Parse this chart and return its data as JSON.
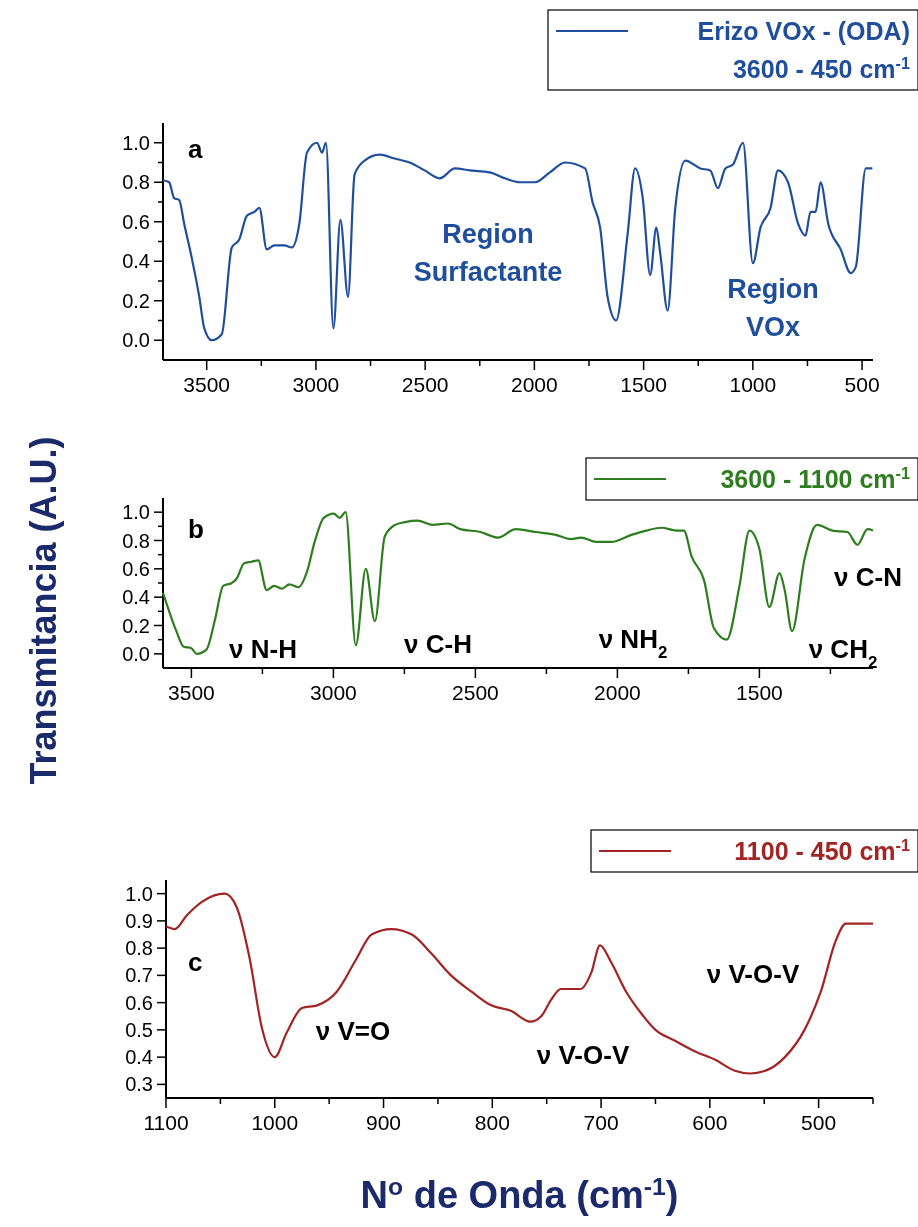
{
  "chart_data": [
    {
      "type": "line",
      "legend": "top right",
      "xlim": [
        3700,
        450
      ],
      "ylim": [
        -0.1,
        1.1
      ],
      "xticks": [
        3500,
        {
          "value": 3250,
          "label": null
        },
        3000,
        {
          "value": 2750,
          "label": null
        },
        2500,
        {
          "value": 2250,
          "label": null
        },
        2000,
        {
          "value": 1750,
          "label": null
        },
        1500,
        {
          "value": 1250,
          "label": null
        },
        1000,
        {
          "value": 750,
          "label": null
        },
        500
      ],
      "yticks": [
        {
          "value": 0.0,
          "label": "0.0"
        },
        {
          "value": 0.1,
          "label": null
        },
        0.2,
        {
          "value": 0.3,
          "label": null
        },
        0.4,
        {
          "value": 0.5,
          "label": null
        },
        0.6,
        {
          "value": 0.7,
          "label": null
        },
        0.8,
        {
          "value": 0.9,
          "label": null
        },
        {
          "value": 1.0,
          "label": "1.0"
        }
      ],
      "annotations": [
        "a",
        "Region\nSurfactante",
        "Region\nVOx"
      ],
      "series": [
        {
          "name": "Erizo VOx - (ODA)\n3600 - 450 cm$^{-1}$",
          "color": "#1f4e9c",
          "x": [
            3700,
            3672,
            3649,
            3626,
            3603,
            3569,
            3534,
            3511,
            3477,
            3431,
            3385,
            3351,
            3316,
            3282,
            3259,
            3225,
            3190,
            3144,
            3110,
            3076,
            3041,
            2995,
            2972,
            2954,
            2920,
            2888,
            2853,
            2823,
            2777,
            2709,
            2640,
            2571,
            2502,
            2433,
            2364,
            2296,
            2204,
            2135,
            2066,
            1997,
            1929,
            1860,
            1768,
            1734,
            1699,
            1665,
            1626,
            1573,
            1539,
            1504,
            1470,
            1442,
            1424,
            1390,
            1355,
            1309,
            1240,
            1195,
            1160,
            1126,
            1091,
            1045,
            1000,
            965,
            919,
            885,
            839,
            793,
            759,
            736,
            713,
            690,
            655,
            598,
            552,
            529,
            483,
            453
          ],
          "values": [
            0.81,
            0.8,
            0.72,
            0.71,
            0.59,
            0.42,
            0.22,
            0.06,
            0.0,
            0.03,
            0.47,
            0.51,
            0.63,
            0.65,
            0.67,
            0.46,
            0.48,
            0.48,
            0.47,
            0.59,
            0.95,
            1.0,
            0.95,
            1.0,
            0.06,
            0.61,
            0.22,
            0.84,
            0.91,
            0.94,
            0.92,
            0.9,
            0.86,
            0.82,
            0.87,
            0.86,
            0.85,
            0.82,
            0.8,
            0.8,
            0.85,
            0.9,
            0.87,
            0.7,
            0.57,
            0.22,
            0.1,
            0.54,
            0.87,
            0.72,
            0.33,
            0.57,
            0.44,
            0.15,
            0.67,
            0.91,
            0.87,
            0.86,
            0.77,
            0.87,
            0.89,
            1.0,
            0.39,
            0.57,
            0.67,
            0.86,
            0.8,
            0.59,
            0.53,
            0.65,
            0.65,
            0.8,
            0.59,
            0.46,
            0.34,
            0.37,
            0.87,
            0.87
          ]
        }
      ]
    },
    {
      "type": "line",
      "legend": "top right",
      "ylabel": "Transmitancia (A.U.)",
      "xlim": [
        3600,
        1100
      ],
      "ylim": [
        -0.1,
        1.1
      ],
      "xticks": [
        3500,
        {
          "value": 3250,
          "label": null
        },
        3000,
        {
          "value": 2750,
          "label": null
        },
        2500,
        {
          "value": 2250,
          "label": null
        },
        2000,
        {
          "value": 1750,
          "label": null
        },
        1500,
        {
          "value": 1250,
          "label": null
        }
      ],
      "yticks": [
        {
          "value": 0.0,
          "label": "0.0"
        },
        {
          "value": 0.1,
          "label": null
        },
        0.2,
        {
          "value": 0.3,
          "label": null
        },
        0.4,
        {
          "value": 0.5,
          "label": null
        },
        0.6,
        {
          "value": 0.7,
          "label": null
        },
        0.8,
        {
          "value": 0.9,
          "label": null
        },
        {
          "value": 1.0,
          "label": "1.0"
        }
      ],
      "annotations": [
        "b",
        "ν N-H",
        "ν C-H",
        "ν NH$_{2}$",
        "ν CH$_{2}$",
        "ν C-N"
      ],
      "series": [
        {
          "name": "3600 - 1100 cm$^{-1}$",
          "color": "#2e7d1f",
          "x": [
            3600,
            3580,
            3553,
            3527,
            3500,
            3482,
            3447,
            3417,
            3388,
            3358,
            3341,
            3314,
            3288,
            3265,
            3235,
            3208,
            3181,
            3155,
            3123,
            3093,
            3066,
            3034,
            2999,
            2978,
            2957,
            2921,
            2886,
            2854,
            2819,
            2783,
            2748,
            2704,
            2650,
            2597,
            2553,
            2482,
            2420,
            2358,
            2288,
            2217,
            2164,
            2128,
            2075,
            2022,
            1951,
            1898,
            1845,
            1792,
            1766,
            1739,
            1695,
            1660,
            1615,
            1571,
            1535,
            1500,
            1465,
            1429,
            1411,
            1385,
            1341,
            1297,
            1243,
            1190,
            1155,
            1119,
            1100
          ],
          "values": [
            0.43,
            0.31,
            0.16,
            0.05,
            0.04,
            0.0,
            0.03,
            0.24,
            0.48,
            0.5,
            0.53,
            0.64,
            0.65,
            0.66,
            0.45,
            0.48,
            0.46,
            0.49,
            0.47,
            0.58,
            0.79,
            0.96,
            0.99,
            0.96,
            1.0,
            0.06,
            0.6,
            0.23,
            0.83,
            0.91,
            0.93,
            0.94,
            0.91,
            0.92,
            0.88,
            0.86,
            0.82,
            0.88,
            0.86,
            0.84,
            0.81,
            0.82,
            0.79,
            0.79,
            0.84,
            0.87,
            0.89,
            0.87,
            0.87,
            0.69,
            0.52,
            0.18,
            0.1,
            0.47,
            0.87,
            0.74,
            0.33,
            0.57,
            0.45,
            0.16,
            0.67,
            0.91,
            0.87,
            0.86,
            0.77,
            0.88,
            0.87
          ]
        }
      ]
    },
    {
      "type": "line",
      "legend": "top right",
      "xlabel": "N$^{o}$ de Onda (cm$^{-1}$)",
      "xlim": [
        1100,
        450
      ],
      "ylim": [
        0.25,
        1.05
      ],
      "xticks": [
        1100,
        {
          "value": 1050,
          "label": null
        },
        1000,
        {
          "value": 950,
          "label": null
        },
        900,
        {
          "value": 850,
          "label": null
        },
        800,
        {
          "value": 750,
          "label": null
        },
        700,
        {
          "value": 650,
          "label": null
        },
        600,
        {
          "value": 550,
          "label": null
        },
        500,
        {
          "value": 450,
          "label": null
        }
      ],
      "yticks": [
        0.3,
        0.4,
        0.5,
        0.6,
        0.7,
        0.8,
        0.9,
        {
          "value": 1.0,
          "label": "1.0"
        }
      ],
      "annotations": [
        "c",
        "ν V=O",
        "ν V-O-V",
        "ν V-O-V"
      ],
      "series": [
        {
          "name": "1100 - 450 cm$^{-1}$",
          "color": "#a32424",
          "x": [
            1100,
            1092,
            1081,
            1067,
            1046,
            1035,
            1023,
            1012,
            1000,
            989,
            975,
            961,
            943,
            925,
            911,
            893,
            874,
            856,
            838,
            819,
            801,
            783,
            765,
            755,
            746,
            737,
            728,
            719,
            709,
            701,
            691,
            677,
            663,
            650,
            632,
            613,
            595,
            577,
            563,
            549,
            531,
            513,
            498,
            484,
            475,
            450
          ],
          "values": [
            0.88,
            0.87,
            0.92,
            0.97,
            1.0,
            0.95,
            0.76,
            0.51,
            0.4,
            0.49,
            0.58,
            0.59,
            0.64,
            0.76,
            0.85,
            0.87,
            0.85,
            0.78,
            0.7,
            0.64,
            0.59,
            0.57,
            0.53,
            0.55,
            0.61,
            0.65,
            0.65,
            0.65,
            0.71,
            0.81,
            0.75,
            0.64,
            0.56,
            0.5,
            0.46,
            0.42,
            0.39,
            0.35,
            0.34,
            0.35,
            0.4,
            0.5,
            0.64,
            0.83,
            0.89,
            0.89
          ]
        }
      ]
    }
  ]
}
